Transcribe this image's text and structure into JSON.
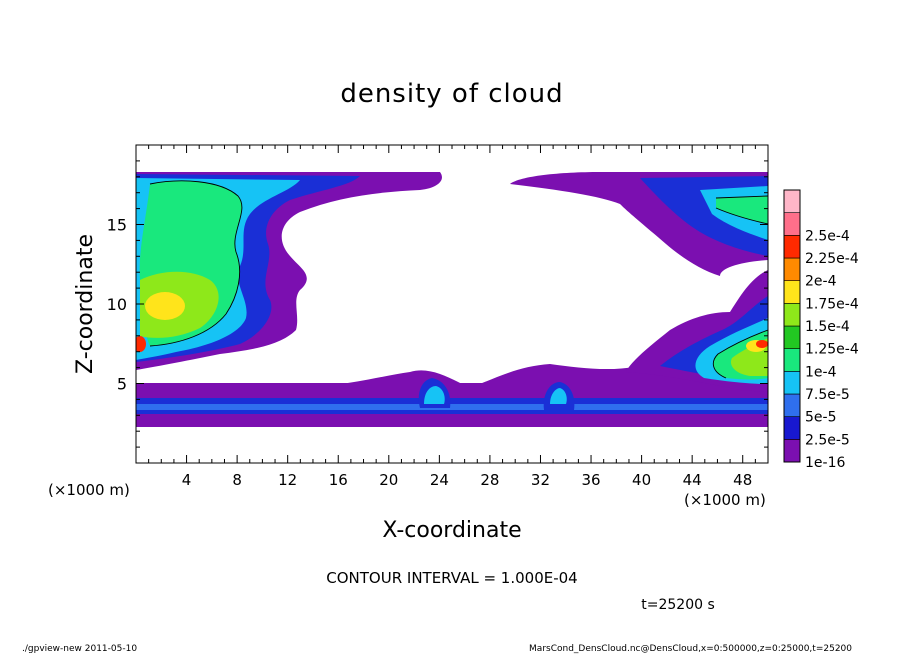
{
  "chart_data": {
    "type": "heatmap",
    "title": "density of cloud",
    "xlabel": "X-coordinate",
    "ylabel": "Z-coordinate",
    "x_unit": "(×1000 m)",
    "y_unit": "(×1000 m)",
    "xlim": [
      0,
      50
    ],
    "ylim": [
      0,
      20
    ],
    "x_ticks": [
      "4",
      "8",
      "12",
      "16",
      "20",
      "24",
      "28",
      "32",
      "36",
      "40",
      "44",
      "48"
    ],
    "y_ticks": [
      "5",
      "10",
      "15"
    ],
    "contour_interval": "CONTOUR INTERVAL = 1.000E-04",
    "time_label": "t=25200 s",
    "colorbar": {
      "labels": [
        "1e-16",
        "2.5e-5",
        "5e-5",
        "7.5e-5",
        "1e-4",
        "1.25e-4",
        "1.5e-4",
        "1.75e-4",
        "2e-4",
        "2.25e-4",
        "2.5e-4"
      ],
      "colors": [
        "#7b0fb0",
        "#1818d0",
        "#2f6fee",
        "#16c3f5",
        "#19e87d",
        "#22c822",
        "#8ee81a",
        "#ffe41b",
        "#ff8a00",
        "#ff2a00",
        "#ff6f8a",
        "#ffb6c8"
      ]
    }
  },
  "footer": {
    "left": "./gpview-new   2011-05-10",
    "right": "MarsCond_DensCloud.nc@DensCloud,x=0:500000,z=0:25000,t=25200"
  }
}
